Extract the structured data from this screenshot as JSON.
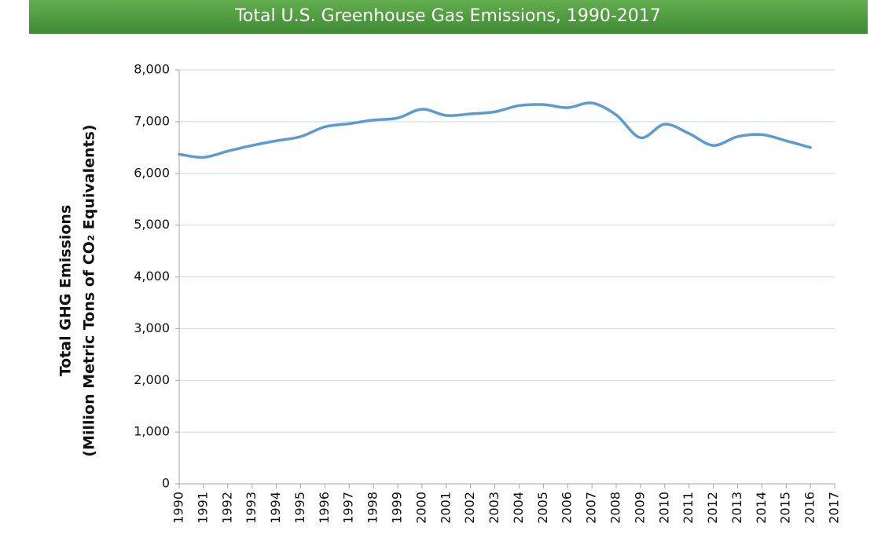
{
  "chart_data": {
    "type": "line",
    "title": "Total U.S. Greenhouse Gas Emissions, 1990-2017",
    "y_label": [
      "Total GHG  Emissions",
      "(Million Metric Tons of CO₂ Equivalents)"
    ],
    "x": [
      1990,
      1991,
      1992,
      1993,
      1994,
      1995,
      1996,
      1997,
      1998,
      1999,
      2000,
      2001,
      2002,
      2003,
      2004,
      2005,
      2006,
      2007,
      2008,
      2009,
      2010,
      2011,
      2012,
      2013,
      2014,
      2015,
      2016
    ],
    "series": [
      {
        "name": "Total GHG Emissions",
        "color": "#5b9bd5",
        "values": [
          6370,
          6310,
          6430,
          6540,
          6630,
          6710,
          6900,
          6960,
          7030,
          7070,
          7240,
          7120,
          7150,
          7190,
          7310,
          7330,
          7270,
          7360,
          7130,
          6690,
          6950,
          6770,
          6540,
          6710,
          6750,
          6630,
          6500
        ]
      }
    ],
    "xlim": [
      1990,
      2017
    ],
    "xticks": [
      1990,
      1991,
      1992,
      1993,
      1994,
      1995,
      1996,
      1997,
      1998,
      1999,
      2000,
      2001,
      2002,
      2003,
      2004,
      2005,
      2006,
      2007,
      2008,
      2009,
      2010,
      2011,
      2012,
      2013,
      2014,
      2015,
      2016,
      2017
    ],
    "ylim": [
      0,
      8000
    ],
    "yticks": [
      0,
      {
        "value": 1000,
        "label": "1,000"
      },
      {
        "value": 2000,
        "label": "2,000"
      },
      {
        "value": 3000,
        "label": "3,000"
      },
      {
        "value": 4000,
        "label": "4,000"
      },
      {
        "value": 5000,
        "label": "5,000"
      },
      {
        "value": 6000,
        "label": "6,000"
      },
      {
        "value": 7000,
        "label": "7,000"
      },
      {
        "value": 8000,
        "label": "8,000"
      }
    ],
    "grid": true,
    "grid_color": "#c9dbef",
    "axis_color": "#a6a6a6"
  }
}
